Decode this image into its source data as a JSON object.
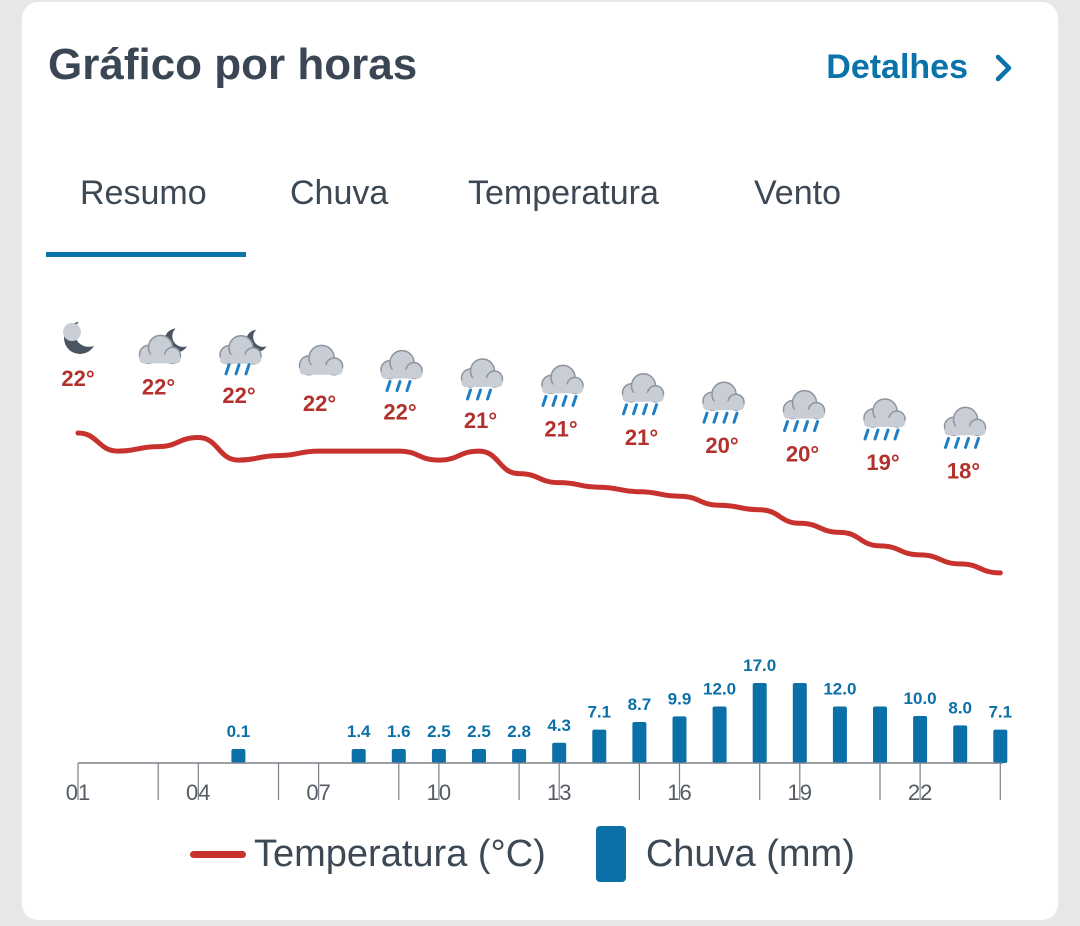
{
  "header": {
    "title": "Gráfico por horas",
    "details_label": "Detalhes"
  },
  "tabs": [
    {
      "label": "Resumo",
      "active": true
    },
    {
      "label": "Chuva",
      "active": false
    },
    {
      "label": "Temperatura",
      "active": false
    },
    {
      "label": "Vento",
      "active": false
    }
  ],
  "legend": {
    "temperature_label": "Temperatura (°C)",
    "rain_label": "Chuva (mm)"
  },
  "colors": {
    "accent": "#0a73aa",
    "temperature_line": "#c8322e",
    "rain_bar": "#0b70a7",
    "temperature_text": "#b3312c"
  },
  "chart_data": {
    "type": "line+bar",
    "hours": [
      1,
      2,
      3,
      4,
      5,
      6,
      7,
      8,
      9,
      10,
      11,
      12,
      13,
      14,
      15,
      16,
      17,
      18,
      19,
      20,
      21,
      22,
      23,
      24
    ],
    "x_tick_labels": [
      "01",
      "04",
      "07",
      "10",
      "13",
      "16",
      "19",
      "22"
    ],
    "temperature_series": {
      "name": "Temperatura (°C)",
      "values": [
        22.2,
        21.8,
        21.9,
        22.1,
        21.6,
        21.7,
        21.8,
        21.8,
        21.8,
        21.6,
        21.8,
        21.3,
        21.1,
        21.0,
        20.9,
        20.8,
        20.6,
        20.5,
        20.2,
        20.0,
        19.7,
        19.5,
        19.3,
        19.1
      ]
    },
    "temperature_labels": [
      {
        "slot": 0,
        "text": "22°",
        "icon": "moon-cloud-icon"
      },
      {
        "slot": 1,
        "text": "22°",
        "icon": "cloud-moon-icon"
      },
      {
        "slot": 2,
        "text": "22°",
        "icon": "cloud-moon-rain-icon"
      },
      {
        "slot": 3,
        "text": "22°",
        "icon": "cloud-icon"
      },
      {
        "slot": 4,
        "text": "22°",
        "icon": "cloud-rain-icon"
      },
      {
        "slot": 5,
        "text": "21°",
        "icon": "cloud-rain-icon"
      },
      {
        "slot": 6,
        "text": "21°",
        "icon": "cloud-heavy-rain-icon"
      },
      {
        "slot": 7,
        "text": "21°",
        "icon": "cloud-heavy-rain-icon"
      },
      {
        "slot": 8,
        "text": "20°",
        "icon": "cloud-heavy-rain-icon"
      },
      {
        "slot": 9,
        "text": "20°",
        "icon": "cloud-heavy-rain-icon"
      },
      {
        "slot": 10,
        "text": "19°",
        "icon": "cloud-heavy-rain-icon"
      },
      {
        "slot": 11,
        "text": "18°",
        "icon": "cloud-heavy-rain-icon"
      }
    ],
    "rain_series": {
      "name": "Chuva (mm)",
      "values": [
        0,
        0,
        0,
        0,
        0.1,
        0,
        0,
        1.4,
        1.6,
        2.5,
        2.5,
        2.8,
        4.3,
        7.1,
        8.7,
        9.9,
        12.0,
        17.0,
        17.0,
        12.0,
        12.0,
        10.0,
        8.0,
        7.1
      ]
    },
    "rain_labels": [
      {
        "hour": 5,
        "text": "0.1"
      },
      {
        "hour": 8,
        "text": "1.4"
      },
      {
        "hour": 9,
        "text": "1.6"
      },
      {
        "hour": 10,
        "text": "2.5"
      },
      {
        "hour": 11,
        "text": "2.5"
      },
      {
        "hour": 12,
        "text": "2.8"
      },
      {
        "hour": 13,
        "text": "4.3"
      },
      {
        "hour": 14,
        "text": "7.1"
      },
      {
        "hour": 15,
        "text": "8.7"
      },
      {
        "hour": 16,
        "text": "9.9"
      },
      {
        "hour": 17,
        "text": "12.0"
      },
      {
        "hour": 18,
        "text": "17.0"
      },
      {
        "hour": 20,
        "text": "12.0"
      },
      {
        "hour": 22,
        "text": "10.0"
      },
      {
        "hour": 23,
        "text": "8.0"
      },
      {
        "hour": 24,
        "text": "7.1"
      }
    ]
  }
}
